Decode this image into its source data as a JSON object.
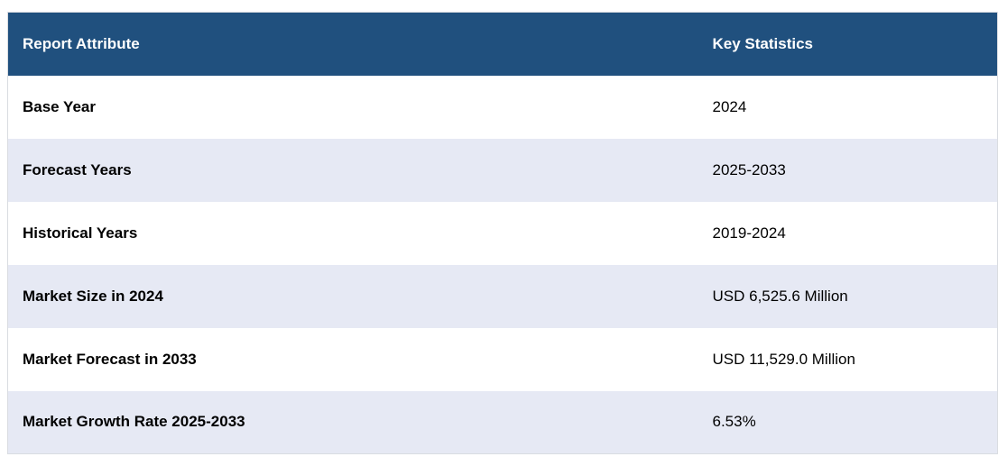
{
  "table": {
    "headers": [
      "Report Attribute",
      "Key Statistics"
    ],
    "rows": [
      {
        "attribute": "Base Year",
        "value": "2024"
      },
      {
        "attribute": "Forecast Years",
        "value": "2025-2033"
      },
      {
        "attribute": "Historical Years",
        "value": "2019-2024"
      },
      {
        "attribute": "Market Size in 2024",
        "value": "USD 6,525.6 Million"
      },
      {
        "attribute": "Market Forecast in 2033",
        "value": "USD 11,529.0 Million"
      },
      {
        "attribute": "Market Growth Rate 2025-2033",
        "value": "6.53%"
      }
    ],
    "colors": {
      "header_bg": "#20507E",
      "stripe_bg": "#E6E9F4",
      "border": "#D9DCE1",
      "header_text": "#FFFFFF",
      "body_text": "#000000"
    }
  },
  "chart_data": {
    "type": "table",
    "title": "",
    "columns": [
      "Report Attribute",
      "Key Statistics"
    ],
    "rows": [
      [
        "Base Year",
        "2024"
      ],
      [
        "Forecast Years",
        "2025-2033"
      ],
      [
        "Historical Years",
        "2019-2024"
      ],
      [
        "Market Size in 2024",
        "USD 6,525.6 Million"
      ],
      [
        "Market Forecast in 2033",
        "USD 11,529.0 Million"
      ],
      [
        "Market Growth Rate 2025-2033",
        "6.53%"
      ]
    ],
    "layout_hints": {
      "header_background": "#20507E",
      "zebra_striping": true,
      "stripe_rows": "even",
      "first_column_bold": true
    }
  }
}
